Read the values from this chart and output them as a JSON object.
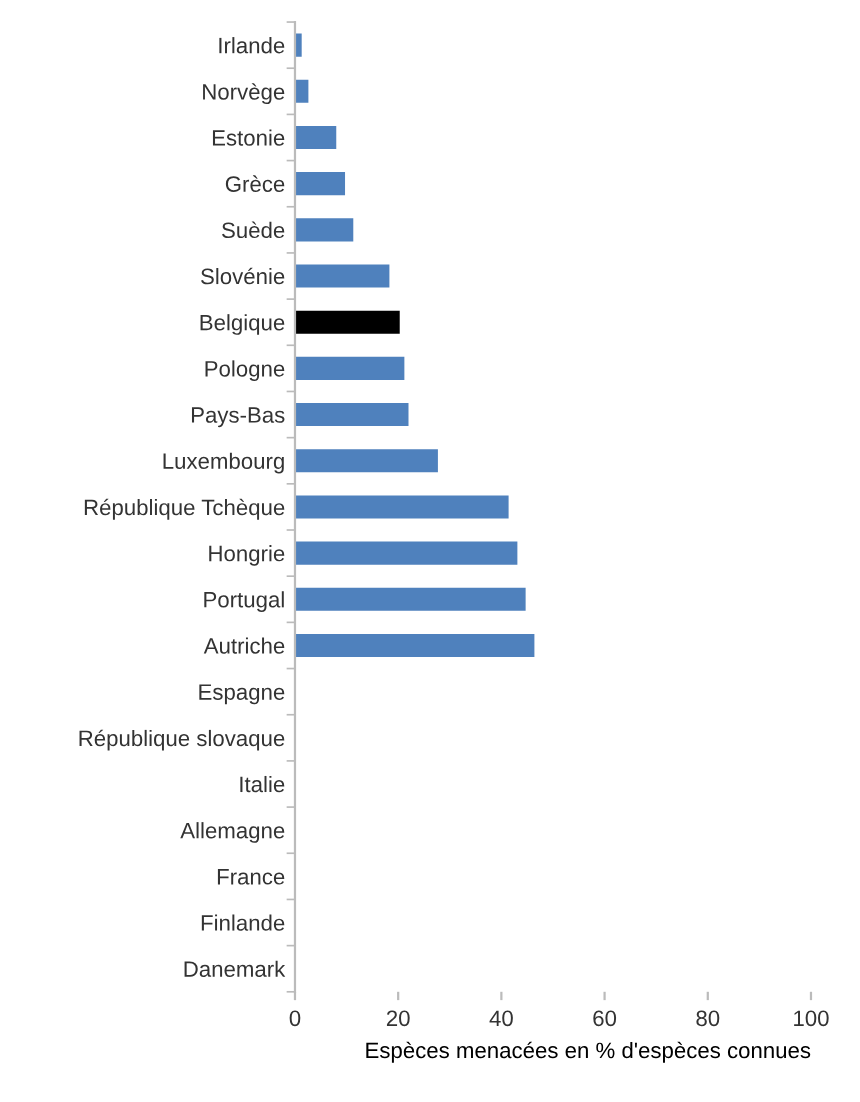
{
  "chart_data": {
    "type": "bar",
    "orientation": "horizontal",
    "xlabel": "Espèces menacées en % d'espèces connues",
    "categories": [
      "Irlande",
      "Norvège",
      "Estonie",
      "Grèce",
      "Suède",
      "Slovénie",
      "Belgique",
      "Pologne",
      "Pays-Bas",
      "Luxembourg",
      "République Tchèque",
      "Hongrie",
      "Portugal",
      "Autriche",
      "Espagne",
      "République slovaque",
      "Italie",
      "Allemagne",
      "France",
      "Finlande",
      "Danemark"
    ],
    "values": [
      1.3,
      2.6,
      8,
      9.7,
      11.3,
      18.3,
      20.3,
      21.2,
      22,
      27.7,
      41.4,
      43.1,
      44.7,
      46.4,
      null,
      null,
      null,
      null,
      null,
      null,
      null
    ],
    "colors": [
      "#4f81bd",
      "#4f81bd",
      "#4f81bd",
      "#4f81bd",
      "#4f81bd",
      "#4f81bd",
      "#000000",
      "#4f81bd",
      "#4f81bd",
      "#4f81bd",
      "#4f81bd",
      "#4f81bd",
      "#4f81bd",
      "#4f81bd",
      "#4f81bd",
      "#4f81bd",
      "#4f81bd",
      "#4f81bd",
      "#4f81bd",
      "#4f81bd",
      "#4f81bd"
    ],
    "xlim": [
      0,
      100
    ],
    "xticks": [
      0,
      20,
      40,
      60,
      80,
      100
    ],
    "grid": false
  }
}
